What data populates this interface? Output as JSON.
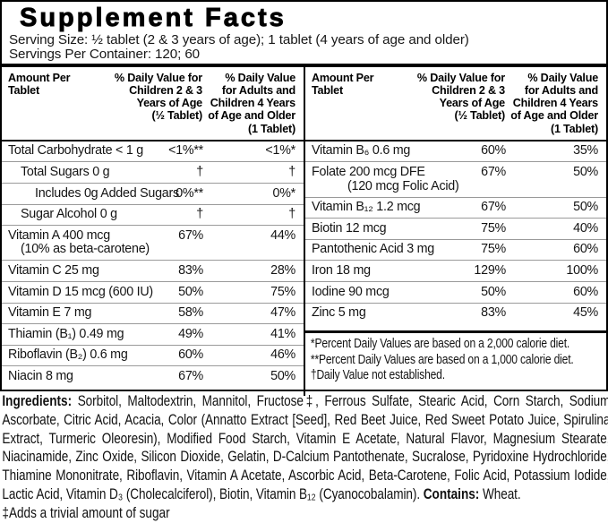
{
  "title": "Supplement Facts",
  "serving": {
    "size": "Serving Size: ½ tablet (2 & 3 years of age); 1 tablet (4 years of age and older)",
    "per_container": "Servings Per Container: 120; 60"
  },
  "table": {
    "header": {
      "col1": "Amount Per\nTablet",
      "col2": "% Daily Value for\nChildren 2 & 3\nYears of Age\n(½ Tablet)",
      "col3": "% Daily Value\nfor Adults and\nChildren 4 Years\nof Age and Older\n(1 Tablet)"
    },
    "panels": [
      {
        "side": "left",
        "rows": [
          {
            "name": "Total Carbohydrate < 1 g",
            "v1": "<1%**",
            "v2": "<1%*"
          },
          {
            "name": "Total Sugars 0 g",
            "indent": 1,
            "v1": "†",
            "v2": "†"
          },
          {
            "name": "Includes 0g Added Sugars",
            "indent": 2,
            "v1": "0%**",
            "v2": "0%*"
          },
          {
            "name": "Sugar Alcohol 0 g",
            "indent": 1,
            "v1": "†",
            "v2": "†"
          },
          {
            "name": "Vitamin A 400 mcg",
            "name2": "(10% as beta-carotene)",
            "v1": "67%",
            "v2": "44%"
          },
          {
            "name": "Vitamin C 25 mg",
            "v1": "83%",
            "v2": "28%"
          },
          {
            "name": "Vitamin D 15 mcg (600 IU)",
            "v1": "50%",
            "v2": "75%"
          },
          {
            "name": "Vitamin E 7 mg",
            "v1": "58%",
            "v2": "47%"
          },
          {
            "name": "Thiamin (B₁) 0.49 mg",
            "v1": "49%",
            "v2": "41%"
          },
          {
            "name": "Riboflavin (B₂) 0.6 mg",
            "v1": "60%",
            "v2": "46%"
          },
          {
            "name": "Niacin 8 mg",
            "v1": "67%",
            "v2": "50%"
          }
        ]
      },
      {
        "side": "right",
        "rows": [
          {
            "name": "Vitamin B₆ 0.6 mg",
            "v1": "60%",
            "v2": "35%"
          },
          {
            "name": "Folate 200 mcg DFE",
            "name2": "(120 mcg Folic Acid)",
            "v1": "67%",
            "v2": "50%"
          },
          {
            "name": "Vitamin B₁₂ 1.2 mcg",
            "v1": "67%",
            "v2": "50%"
          },
          {
            "name": "Biotin 12 mcg",
            "v1": "75%",
            "v2": "40%"
          },
          {
            "name": "Pantothenic Acid 3 mg",
            "v1": "75%",
            "v2": "60%"
          },
          {
            "name": "Iron 18 mg",
            "v1": "129%",
            "v2": "100%"
          },
          {
            "name": "Iodine 90 mcg",
            "v1": "50%",
            "v2": "60%"
          },
          {
            "name": "Zinc 5 mg",
            "v1": "83%",
            "v2": "45%"
          }
        ],
        "footnotes": [
          "*Percent Daily Values are based on a 2,000 calorie diet.",
          "**Percent Daily Values are based on a 1,000 calorie diet.",
          "†Daily Value not established."
        ]
      }
    ]
  },
  "ingredients": {
    "label": "Ingredients:",
    "text": " Sorbitol, Maltodextrin, Mannitol, Fructose‡, Ferrous Sulfate, Stearic Acid, Corn Starch, Sodium Ascorbate, Citric Acid, Acacia, Color (Annatto Extract [Seed], Red Beet Juice, Red Sweet Potato Juice, Spirulina Extract, Turmeric Oleoresin), Modified Food Starch, Vitamin E Acetate, Natural Flavor, Magnesium Stearate, Niacinamide, Zinc Oxide, Silicon Dioxide, Gelatin, D-Calcium Pantothenate, Sucralose, Pyridoxine Hydrochloride, Thiamine Mononitrate, Riboflavin, Vitamin A Acetate, Ascorbic Acid, Beta-Carotene, Folic Acid, Potassium Iodide, Lactic Acid, Vitamin D₃ (Cholecalciferol), Biotin, Vitamin B₁₂ (Cyanocobalamin). ",
    "contains_label": "Contains:",
    "contains_text": " Wheat.",
    "footnote": "‡Adds a trivial amount of sugar"
  }
}
